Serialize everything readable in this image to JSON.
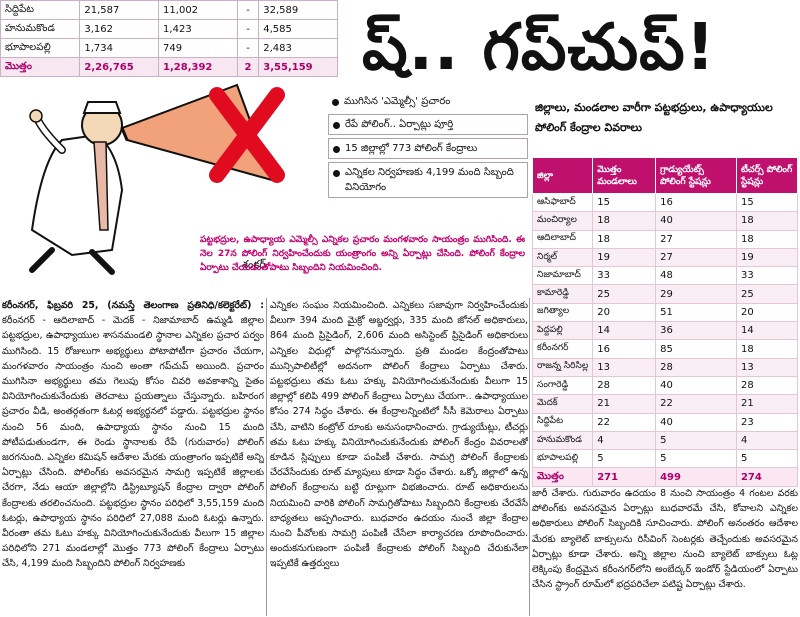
{
  "top_table": {
    "rows": [
      {
        "district": "సిద్దిపేట",
        "c1": "21,587",
        "c2": "11,002",
        "c3": "-",
        "c4": "32,589"
      },
      {
        "district": "హనుమకొండ",
        "c1": "3,162",
        "c2": "1,423",
        "c3": "-",
        "c4": "4,585"
      },
      {
        "district": "భూపాలపల్లి",
        "c1": "1,734",
        "c2": "749",
        "c3": "-",
        "c4": "2,483"
      },
      {
        "district": "మొత్తం",
        "c1": "2,26,765",
        "c2": "1,28,392",
        "c3": "2",
        "c4": "3,55,159"
      }
    ]
  },
  "headline": "ష్‌.. గప్‌చుప్‌!",
  "subhead": "జిల్లాలు, మండలాల వారీగా పట్టభద్రులు, ఉపాధ్యాయుల పోలింగ్‌ కేంద్రాల వివరాలు",
  "cartoon": {
    "signature": "శంకర్"
  },
  "bullets": [
    "ముగిసిన 'ఎమ్మెల్సీ' ప్రచారం",
    "రేపే పోలింగ్‌.. ఏర్పాట్లు పూర్తి",
    "15 జిల్లాల్లో 773 పోలింగ్‌ కేంద్రాలు",
    "ఎన్నికల నిర్వహణకు 4,199 మంది సిబ్బంది వినియోగం"
  ],
  "pink_intro": "పట్టభద్రుల, ఉపాధ్యాయ ఎమ్మెల్సీ ఎన్నికల ప్రచారం మంగళవారం సాయంత్రం ముగిసింది. ఈ నెల 27న పోలింగ్‌ నిర్వహించేందుకు యంత్రాంగం అన్ని ఏర్పాట్లు చేసింది. పోలింగ్‌ కేంద్రాల ఏర్పాటు చేయడంతోపాటు సిబ్బందిని నియమించింది.",
  "district_table": {
    "headers": [
      "జిల్లా",
      "మొత్తం మండలాలు",
      "గ్రాడ్యుయేట్స్‌ పోలింగ్‌ స్టేషన్లు",
      "టీచర్స్‌ పోలింగ్‌ స్టేషన్లు"
    ],
    "rows": [
      [
        "ఆసిఫాబాద్‌",
        "15",
        "16",
        "15"
      ],
      [
        "మంచిర్యాల",
        "18",
        "40",
        "18"
      ],
      [
        "ఆదిలాబాద్‌",
        "18",
        "27",
        "18"
      ],
      [
        "నిర్మల్‌",
        "19",
        "27",
        "19"
      ],
      [
        "నిజామాబాద్‌",
        "33",
        "48",
        "33"
      ],
      [
        "కామారెడ్డి",
        "25",
        "29",
        "25"
      ],
      [
        "జగిత్యాల",
        "20",
        "51",
        "20"
      ],
      [
        "పెద్దపల్లి",
        "14",
        "36",
        "14"
      ],
      [
        "కరీంనగర్‌",
        "16",
        "85",
        "18"
      ],
      [
        "రాజన్న సిరిసిల్ల",
        "13",
        "28",
        "13"
      ],
      [
        "సంగారెడ్డి",
        "28",
        "40",
        "28"
      ],
      [
        "మెదక్‌",
        "21",
        "22",
        "21"
      ],
      [
        "సిద్దిపేట",
        "22",
        "40",
        "23"
      ],
      [
        "హనుమకొండ",
        "4",
        "5",
        "4"
      ],
      [
        "భూపాలపల్లి",
        "5",
        "5",
        "5"
      ]
    ],
    "total": [
      "మొత్తం",
      "271",
      "499",
      "274"
    ]
  },
  "article": {
    "dateline": "కరీంనగర్‌, ఫిబ్రవరి 25, (నమస్తే తెలంగాణ ప్రతినిధి/కలెక్టరేట్‌) :",
    "col1": "కరీంనగర్‌ - ఆదిలాబాద్‌ - మెదక్‌ - నిజామాబాద్‌ ఉమ్మడి జిల్లాల పట్టభద్రుల, ఉపాధ్యాయుల శాసనమండలి స్థానాల ఎన్నికల ప్రచార పర్వం ముగిసింది. 15 రోజులుగా అభ్యర్థులు పోటాపోటీగా ప్రచారం చేయగా, మంగళవారం సాయంత్రం నుంచి అంతా గప్‌చుప్‌ అయింది. ప్రచారం ముగిసినా అభ్యర్థులు తమ గెలుపు కోసం చివరి అవకాశాన్ని సైతం వినియోగించుకునేందుకు తెరచాటు ప్రయత్నాలు చేస్తున్నారు. బహిరంగ ప్రచారం వీడి, అంతర్గతంగా ఓటర్ల అభ్యర్థనలో పడ్డారు. పట్టభద్రుల స్థానం నుంచి 56 మంది, ఉపాధ్యాయ స్థానం నుంచి 15 మంది పోటీపడుతుండగా, ఈ రెండు స్థానాలకు రేపే (గురువారం) పోలింగ్‌ జరగనుంది. ఎన్నికల కమిషన్‌ ఆదేశాల మేరకు యంత్రాంగం ఇప్పటికే అన్ని ఏర్పాట్లు చేసింది. పోలింగ్‌కు అవసరమైన సామగ్రి ఇప్పటికే జిల్లాలకు చేరగా, నేడు ఆయా జిల్లాల్లోని డిస్ట్రిబ్యూషన్‌ కేంద్రాల ద్వారా పోలింగ్‌ కేంద్రాలకు తరలించనుంది. పట్టభద్రుల స్థానం పరిధిలో 3,55,159 మంది ఓటర్లు, ఉపాధ్యాయ స్థానం పరిధిలో 27,088 మంది ఓటర్లు ఉన్నారు. వీరంతా తమ ఓటు హక్కు వినియోగించుకునేందుకు వీలుగా 15 జిల్లాల పరిధిలోని 271 మండలాల్లో మొత్తం 773 పోలింగ్‌ కేంద్రాలు ఏర్పాటు చేసి, 4,199 మంది సిబ్బందిని పోలింగ్‌ నిర్వహణకు",
    "col2": "ఎన్నికల సంఘం నియమించింది. ఎన్నికలు సజావుగా నిర్వహించేందుకు వీలుగా 394 మంది మైక్రో అబ్జర్వర్లు, 335 మంది జోనల్‌ అధికారులు, 864 మంది ప్రిసైడింగ్‌, 2,606 మంది అసిస్టెంట్‌ ప్రిసైడింగ్‌ అధికారులు ఎన్నికల విధుల్లో పాల్గొననున్నారు. ప్రతి మండల కేంద్రంతోపాటు మున్సిపాలిటీల్లో అదనంగా పోలింగ్‌ కేంద్రాలు ఏర్పాటు చేశారు. పట్టభద్రులు తమ ఓటు హక్కు వినియోగించుకునేందుకు వీలుగా 15 జిల్లాల్లో కలిపి 499 పోలింగ్‌ కేంద్రాలు ఏర్పాటు చేయగా.. ఉపాధ్యాయుల కోసం 274 సిద్ధం చేశారు. ఈ కేంద్రాలన్నింటిలో సీసీ కెమెరాలు ఏర్పాటు చేసి, వాటిని కంట్రోల్‌ రూంకు అనుసంధానించారు. గ్రాడ్యుయేట్లు, టీచర్లు తమ ఓటు హక్కు వినియోగించుకునేందుకు పోలింగ్‌ కేంద్రం వివరాలతో కూడిన స్లిప్పులు కూడా పంపిణీ చేశారు. సామగ్రి పోలింగ్‌ కేంద్రాలకు చేరవేసేందుకు రూట్‌ మ్యాపులు కూడా సిద్ధం చేశారు. ఒక్కో జిల్లాలో ఉన్న పోలింగ్‌ కేంద్రాలను బట్టి రూట్లుగా విభజించారు. రూట్‌ అధికారులను నియమించి వారికి పోలింగ్‌ సామగ్రితోపాటు సిబ్బందిని కేంద్రాలకు చేరవేసే బాధ్యతలు అప్పగించారు. బుధవారం ఉదయం నుంచే జిల్లా కేంద్రాల నుంచి పీవోలకు సామగ్రి పంపిణీ చేసేలా కార్యాచరణ రూపొందించారు. అందుకనుగుణంగా పంపిణీ కేంద్రాలకు పోలింగ్‌ సిబ్బంది చేరుకునేలా ఇప్పటికే ఉత్తర్వులు",
    "col3": "జారీ చేశారు. గురువారం ఉదయం 8 నుంచి సాయంత్రం 4 గంటల వరకు పోలింగ్‌కు అవసరమైన ఏర్పాట్లు బుధవారమే చేసి, కోవాలని ఎన్నికల అధికారులు పోలింగ్‌ సిబ్బందికి సూచించారు. పోలింగ్‌ అనంతరం ఆదేశాల మేరకు బ్యాలెట్‌ బాక్సులను రిసీవింగ్‌ సెంటర్లకు తెచ్చేందుకు అవసరమైన ఏర్పాట్లు కూడా చేశారు. అన్ని జిల్లాల నుంచి బ్యాలెట్‌ బాక్సులు ఓట్ల లెక్కింపు కేంద్రమైన కరీంనగర్‌లోని అంబేద్కర్‌ ఇండోర్‌ స్టేడియంలో ఏర్పాటు చేసిన స్ట్రాంగ్‌ రూమ్‌లో భద్రపరిచేలా పటిష్ట ఏర్పాట్లు చేశారు."
  },
  "colors": {
    "accent": "#c0106e",
    "pink_text": "#c4006e",
    "highlight_row": "#f8eef4"
  }
}
